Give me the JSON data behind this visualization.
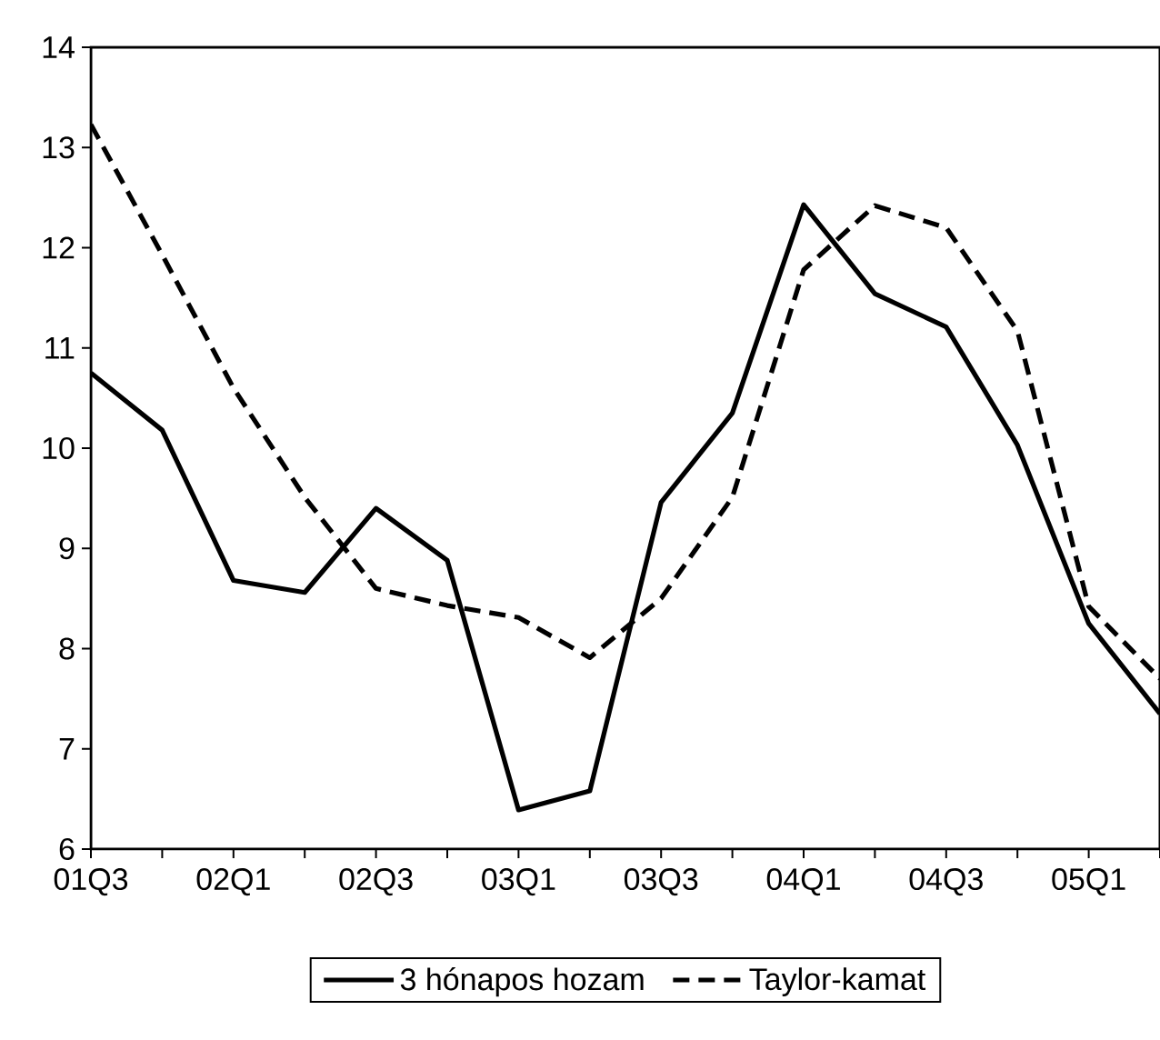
{
  "chart_data": {
    "type": "line",
    "categories": [
      "01Q3",
      null,
      "02Q1",
      null,
      "02Q3",
      null,
      "03Q1",
      null,
      "03Q3",
      null,
      "04Q1",
      null,
      "04Q3",
      null,
      "05Q1",
      null
    ],
    "series": [
      {
        "name": "3 hónapos hozam",
        "color": "#000000",
        "line_style": "solid",
        "values": [
          10.75,
          10.18,
          8.68,
          8.56,
          9.4,
          8.88,
          6.39,
          6.58,
          9.46,
          10.35,
          12.43,
          11.54,
          11.21,
          10.03,
          8.25,
          7.35
        ]
      },
      {
        "name": "Taylor-kamat",
        "color": "#000000",
        "line_style": "dashed",
        "values": [
          13.23,
          11.93,
          10.6,
          9.51,
          8.6,
          8.43,
          8.31,
          7.91,
          8.5,
          9.51,
          11.78,
          12.42,
          12.2,
          11.17,
          8.42,
          7.7
        ]
      }
    ],
    "ylim": [
      6,
      14
    ],
    "yticks": [
      6,
      7,
      8,
      9,
      10,
      11,
      12,
      13,
      14
    ],
    "grid": false,
    "legend": "bottom",
    "marker": "none"
  }
}
